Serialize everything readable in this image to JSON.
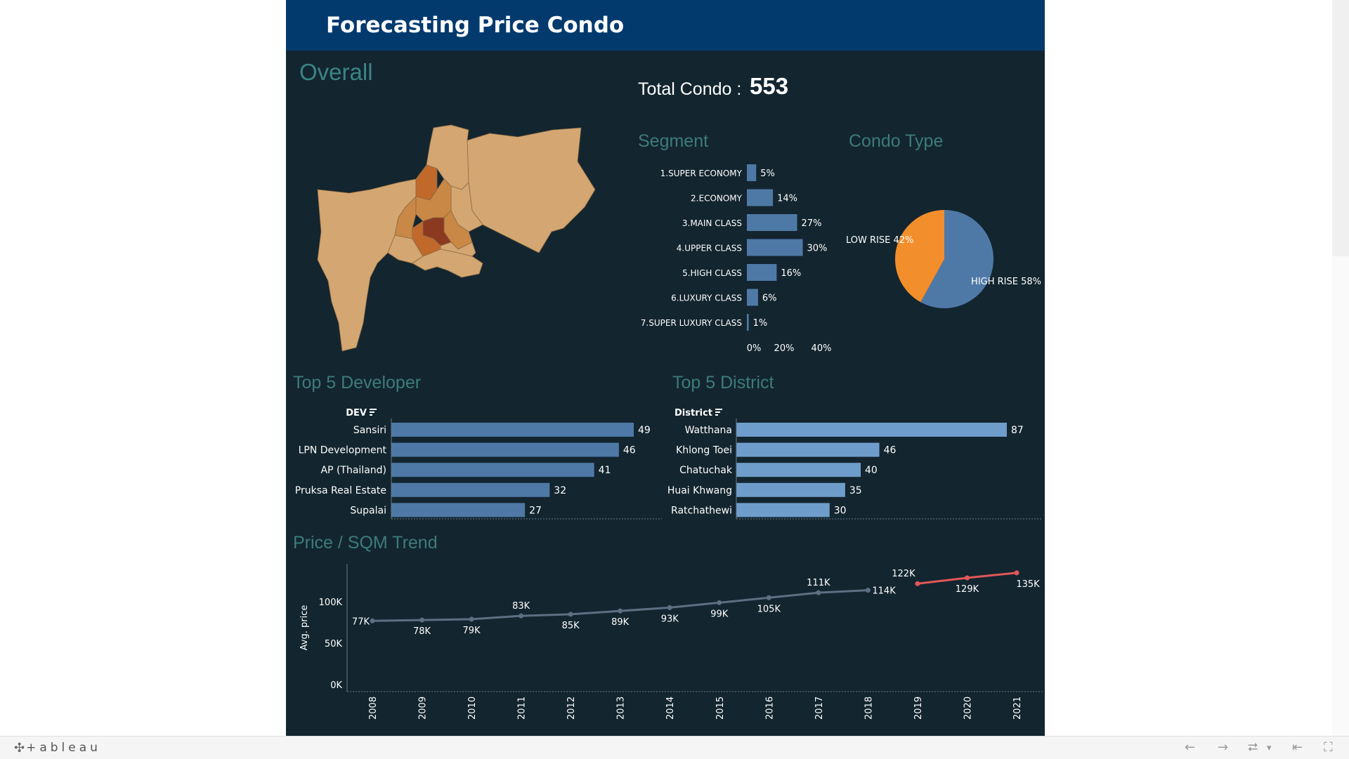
{
  "header": {
    "title": "Forecasting Price Condo"
  },
  "overall": {
    "title": "Overall",
    "total_label": "Total Condo :",
    "total_value": "553"
  },
  "segment": {
    "title": "Segment"
  },
  "condo_type": {
    "title": "Condo Type"
  },
  "developer": {
    "title": "Top 5 Developer"
  },
  "district": {
    "title": "Top 5 District"
  },
  "trend": {
    "title": "Price / SQM Trend"
  },
  "colors": {
    "bar_blue": "#4e79a7",
    "bar_light_blue": "#6f9dcb",
    "pie_orange": "#f28e2b",
    "line_actual": "#5e6f82",
    "line_forecast": "#e15759",
    "map_base": "#d4a671",
    "map_mid": "#c98845",
    "map_high": "#c0692b",
    "map_top": "#8b3a1f"
  },
  "chart_data": [
    {
      "type": "bar",
      "id": "segment",
      "title": "Segment",
      "categories": [
        "1.SUPER ECONOMY",
        "2.ECONOMY",
        "3.MAIN CLASS",
        "4.UPPER CLASS",
        "5.HIGH CLASS",
        "6.LUXURY CLASS",
        "7.SUPER LUXURY CLASS"
      ],
      "values": [
        5,
        14,
        27,
        30,
        16,
        6,
        1
      ],
      "labels": [
        "5%",
        "14%",
        "27%",
        "30%",
        "16%",
        "6%",
        "1%"
      ],
      "xticks": [
        "0%",
        "20%",
        "40%"
      ],
      "xlim": [
        0,
        40
      ]
    },
    {
      "type": "pie",
      "id": "condo_type",
      "title": "Condo Type",
      "slices": [
        {
          "label": "HIGH RISE 58%",
          "value": 58,
          "color": "#4e79a7"
        },
        {
          "label": "LOW RISE 42%",
          "value": 42,
          "color": "#f28e2b"
        }
      ]
    },
    {
      "type": "bar",
      "id": "developer",
      "title": "Top 5 Developer",
      "header": "DEV",
      "categories": [
        "Sansiri",
        "LPN Development",
        "AP (Thailand)",
        "Pruksa Real Estate",
        "Supalai"
      ],
      "values": [
        49,
        46,
        41,
        32,
        27
      ]
    },
    {
      "type": "bar",
      "id": "district",
      "title": "Top 5 District",
      "header": "District",
      "categories": [
        "Watthana",
        "Khlong Toei",
        "Chatuchak",
        "Huai Khwang",
        "Ratchathewi"
      ],
      "values": [
        87,
        46,
        40,
        35,
        30
      ]
    },
    {
      "type": "line",
      "id": "trend",
      "title": "Price / SQM Trend",
      "ylabel": "Avg. price",
      "ylim": [
        0,
        140000
      ],
      "yticks": [
        {
          "value": 0,
          "label": "0K"
        },
        {
          "value": 50000,
          "label": "50K"
        },
        {
          "value": 100000,
          "label": "100K"
        }
      ],
      "x": [
        "2008",
        "2009",
        "2010",
        "2011",
        "2012",
        "2013",
        "2014",
        "2015",
        "2016",
        "2017",
        "2018",
        "2019",
        "2020",
        "2021"
      ],
      "series": [
        {
          "values": [
            77000,
            78000,
            79000,
            83000,
            85000,
            89000,
            93000,
            99000,
            105000,
            111000,
            114000,
            null,
            null,
            null
          ],
          "labels": [
            "77K",
            "78K",
            "79K",
            "83K",
            "85K",
            "89K",
            "93K",
            "99K",
            "105K",
            "111K",
            "114K",
            "",
            "",
            ""
          ]
        },
        {
          "values": [
            null,
            null,
            null,
            null,
            null,
            null,
            null,
            null,
            null,
            null,
            null,
            122000,
            129000,
            135000
          ],
          "labels": [
            "",
            "",
            "",
            "",
            "",
            "",
            "",
            "",
            "",
            "",
            "",
            "122K",
            "129K",
            "135K"
          ]
        }
      ]
    }
  ],
  "toolbar": {
    "logo_text": "+ableau",
    "logo_mark": "✣",
    "back_icon": "←",
    "forward_icon": "→",
    "share_icon": "⮂",
    "share_menu_icon": "▾",
    "reset_icon": "⇤",
    "fullscreen_icon": "⛶"
  }
}
